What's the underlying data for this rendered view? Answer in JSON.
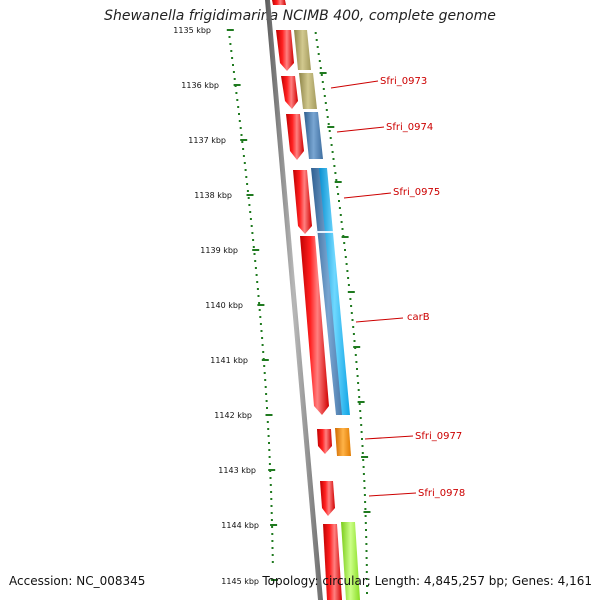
{
  "title": "Shewanella frigidimarina NCIMB 400, complete genome",
  "accession_text": "Accession: NC_008345",
  "summary_text": "Topology: circular; Length: 4,845,257 bp; Genes: 4,161",
  "colors": {
    "backbone": "#7a7a7a",
    "tick": "#1f7a1f",
    "gene_label": "#cc0000",
    "forward_strand_gene": "#ff0000",
    "khaki_feature": "#b5ab6e",
    "steelblue_feature": "#4a7fb5",
    "cyan_feature": "#19b5f0",
    "orange_feature": "#ff8c00",
    "lime_feature": "#99ee33"
  },
  "scale_labels": [
    {
      "kbp": 1135,
      "text": "1135 kbp"
    },
    {
      "kbp": 1136,
      "text": "1136 kbp"
    },
    {
      "kbp": 1137,
      "text": "1137 kbp"
    },
    {
      "kbp": 1138,
      "text": "1138 kbp"
    },
    {
      "kbp": 1139,
      "text": "1139 kbp"
    },
    {
      "kbp": 1140,
      "text": "1140 kbp"
    },
    {
      "kbp": 1141,
      "text": "1141 kbp"
    },
    {
      "kbp": 1142,
      "text": "1142 kbp"
    },
    {
      "kbp": 1143,
      "text": "1143 kbp"
    },
    {
      "kbp": 1144,
      "text": "1144 kbp"
    },
    {
      "kbp": 1145,
      "text": "1145 kbp"
    }
  ],
  "gene_labels": [
    {
      "name": "Sfri_0973"
    },
    {
      "name": "Sfri_0974"
    },
    {
      "name": "Sfri_0975"
    },
    {
      "name": "carB"
    },
    {
      "name": "Sfri_0977"
    },
    {
      "name": "Sfri_0978"
    }
  ]
}
